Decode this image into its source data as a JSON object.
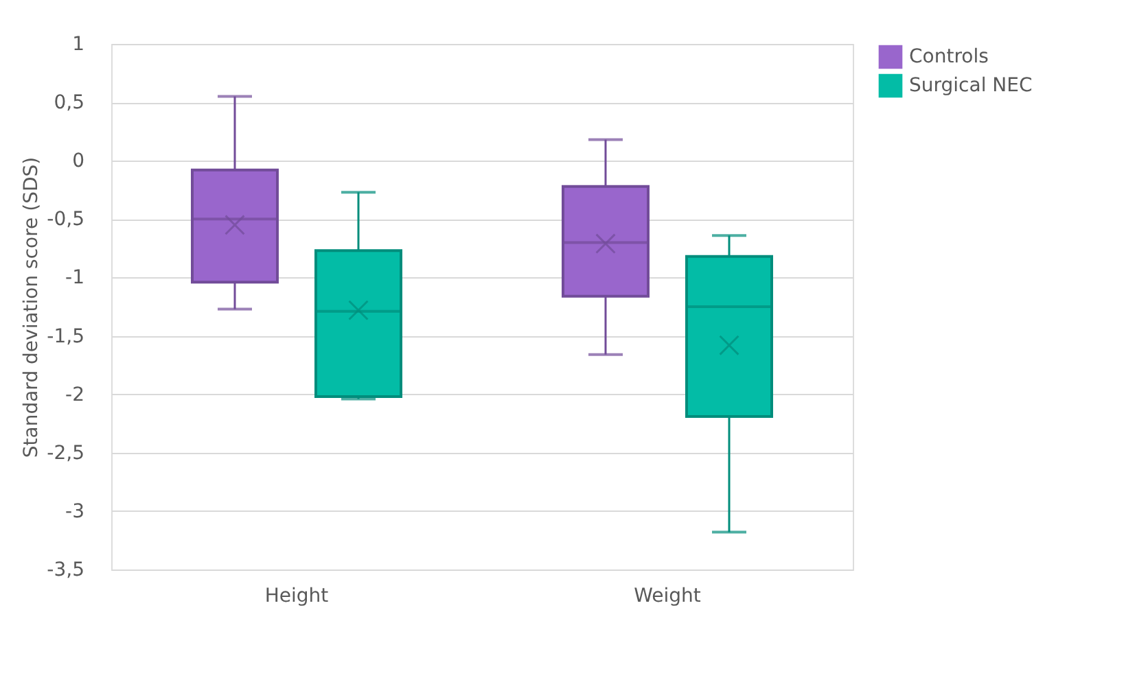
{
  "chart_data": {
    "type": "box",
    "ylabel": "Standard deviation score (SDS)",
    "categories": [
      "Height",
      "Weight"
    ],
    "series": [
      {
        "name": "Controls",
        "color": "#9966cc",
        "boxes": [
          {
            "low": -1.27,
            "q1": -1.04,
            "median": -0.5,
            "q3": -0.08,
            "high": 0.55,
            "mean": -0.55
          },
          {
            "low": -1.66,
            "q1": -1.16,
            "median": -0.7,
            "q3": -0.22,
            "high": 0.18,
            "mean": -0.71
          }
        ]
      },
      {
        "name": "Surgical NEC",
        "color": "#03bca6",
        "boxes": [
          {
            "low": -2.04,
            "q1": -2.02,
            "median": -1.29,
            "q3": -0.77,
            "high": -0.27,
            "mean": -1.28
          },
          {
            "low": -3.18,
            "q1": -2.19,
            "median": -1.25,
            "q3": -0.82,
            "high": -0.64,
            "mean": -1.58
          }
        ]
      }
    ],
    "ylim": [
      -3.5,
      1
    ],
    "yticks": [
      {
        "value": -3.5,
        "label": "-3,5"
      },
      {
        "value": -3,
        "label": "-3"
      },
      {
        "value": -2.5,
        "label": "-2,5"
      },
      {
        "value": -2,
        "label": "-2"
      },
      {
        "value": -1.5,
        "label": "-1,5"
      },
      {
        "value": -1,
        "label": "-1"
      },
      {
        "value": -0.5,
        "label": "-0,5"
      },
      {
        "value": 0,
        "label": "0"
      },
      {
        "value": 0.5,
        "label": "0,5"
      },
      {
        "value": 1,
        "label": "1"
      }
    ],
    "grid": "y",
    "legend": "right",
    "marker": "cross"
  }
}
